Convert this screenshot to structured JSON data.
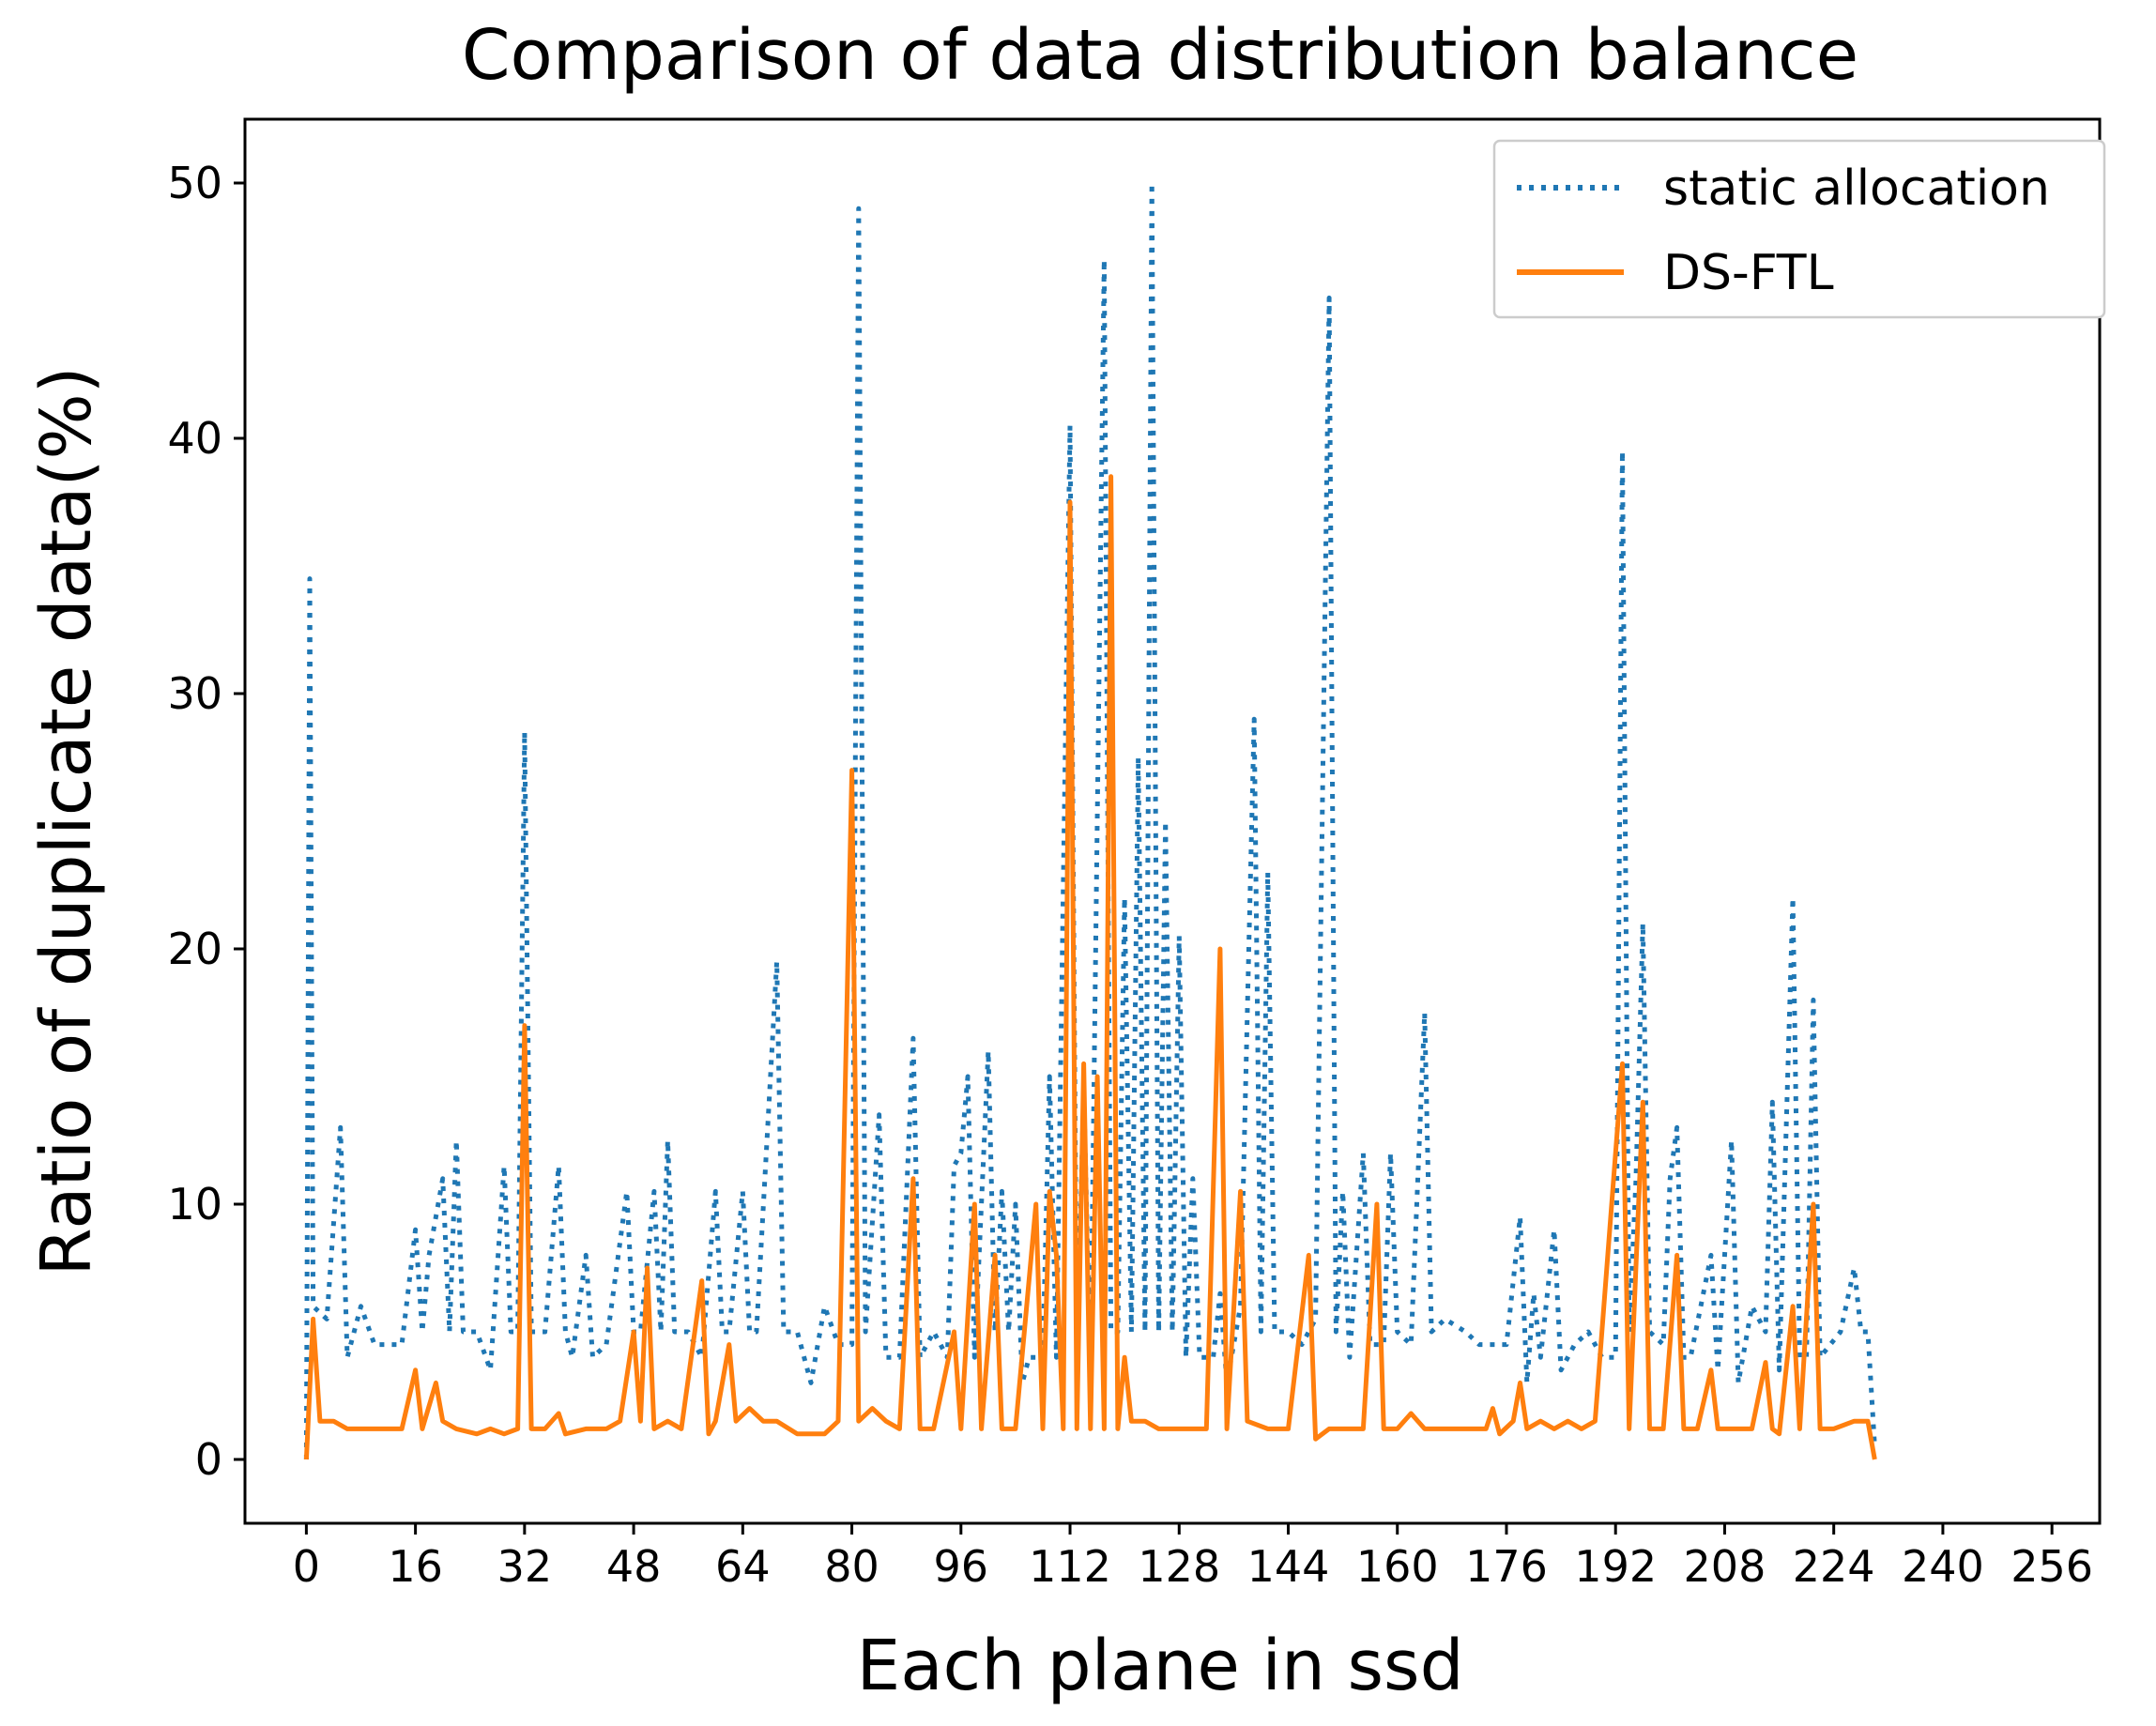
{
  "chart_data": {
    "type": "line",
    "title": "Comparison of data distribution balance",
    "xlabel": "Each plane in ssd",
    "ylabel": "Ratio of duplicate data(%)",
    "xlim": [
      -9,
      263
    ],
    "ylim": [
      -2.5,
      52.5
    ],
    "xticks": [
      0,
      16,
      32,
      48,
      64,
      80,
      96,
      112,
      128,
      144,
      160,
      176,
      192,
      208,
      224,
      240,
      256
    ],
    "yticks": [
      0,
      10,
      20,
      30,
      40,
      50
    ],
    "legend": {
      "position": "upper-right"
    },
    "series": [
      {
        "name": "static allocation",
        "color": "#1f77b4",
        "style": "dotted",
        "points": [
          [
            0,
            0
          ],
          [
            0.5,
            34.5
          ],
          [
            1,
            6
          ],
          [
            3,
            5.5
          ],
          [
            5,
            13
          ],
          [
            6,
            4
          ],
          [
            8,
            6
          ],
          [
            10,
            4.5
          ],
          [
            14,
            4.5
          ],
          [
            16,
            9
          ],
          [
            17,
            5
          ],
          [
            18,
            8
          ],
          [
            20,
            11
          ],
          [
            21,
            5
          ],
          [
            22,
            12.5
          ],
          [
            23,
            5
          ],
          [
            25,
            5
          ],
          [
            27,
            3.5
          ],
          [
            29,
            11.5
          ],
          [
            30,
            5
          ],
          [
            31,
            5
          ],
          [
            32,
            28.5
          ],
          [
            33,
            5
          ],
          [
            35,
            5
          ],
          [
            37,
            11.5
          ],
          [
            38,
            5
          ],
          [
            39,
            4
          ],
          [
            41,
            8
          ],
          [
            42,
            4
          ],
          [
            44,
            4.5
          ],
          [
            47,
            10.5
          ],
          [
            48,
            5
          ],
          [
            49,
            5
          ],
          [
            51,
            10.5
          ],
          [
            52,
            5
          ],
          [
            53,
            12.5
          ],
          [
            54,
            5
          ],
          [
            56,
            5
          ],
          [
            58,
            4
          ],
          [
            60,
            10.5
          ],
          [
            61,
            5
          ],
          [
            62,
            5
          ],
          [
            64,
            10.5
          ],
          [
            65,
            5
          ],
          [
            66,
            5
          ],
          [
            69,
            19.5
          ],
          [
            70,
            5
          ],
          [
            72,
            5
          ],
          [
            74,
            3
          ],
          [
            76,
            6
          ],
          [
            78,
            4.5
          ],
          [
            80,
            4.5
          ],
          [
            81,
            49
          ],
          [
            82,
            5
          ],
          [
            84,
            13.5
          ],
          [
            85,
            4
          ],
          [
            87,
            4
          ],
          [
            89,
            16.5
          ],
          [
            90,
            4
          ],
          [
            92,
            5
          ],
          [
            94,
            4
          ],
          [
            95,
            11.5
          ],
          [
            96,
            12
          ],
          [
            97,
            15
          ],
          [
            98,
            4
          ],
          [
            100,
            16
          ],
          [
            101,
            5
          ],
          [
            102,
            10.5
          ],
          [
            103,
            5
          ],
          [
            104,
            10
          ],
          [
            105,
            3
          ],
          [
            106,
            4
          ],
          [
            108,
            4
          ],
          [
            109,
            15
          ],
          [
            110,
            4
          ],
          [
            112,
            40.5
          ],
          [
            113,
            4
          ],
          [
            114,
            14.5
          ],
          [
            115,
            3.5
          ],
          [
            117,
            47
          ],
          [
            118,
            5
          ],
          [
            119,
            5
          ],
          [
            120,
            22
          ],
          [
            121,
            5
          ],
          [
            122,
            27.5
          ],
          [
            123,
            5
          ],
          [
            124,
            50
          ],
          [
            125,
            5
          ],
          [
            126,
            25
          ],
          [
            127,
            5
          ],
          [
            128,
            20.5
          ],
          [
            129,
            4
          ],
          [
            130,
            11
          ],
          [
            131,
            4
          ],
          [
            132,
            4
          ],
          [
            133,
            4
          ],
          [
            134,
            6.5
          ],
          [
            135,
            3
          ],
          [
            137,
            6
          ],
          [
            139,
            29
          ],
          [
            140,
            5
          ],
          [
            141,
            23
          ],
          [
            142,
            5
          ],
          [
            144,
            5
          ],
          [
            146,
            4.5
          ],
          [
            148,
            5.5
          ],
          [
            150,
            45.5
          ],
          [
            151,
            5
          ],
          [
            152,
            10.5
          ],
          [
            153,
            4
          ],
          [
            155,
            12
          ],
          [
            156,
            4.5
          ],
          [
            158,
            4.5
          ],
          [
            159,
            12
          ],
          [
            160,
            5
          ],
          [
            162,
            4.5
          ],
          [
            164,
            17.5
          ],
          [
            165,
            5
          ],
          [
            167,
            5.5
          ],
          [
            170,
            5
          ],
          [
            172,
            4.5
          ],
          [
            176,
            4.5
          ],
          [
            178,
            9.5
          ],
          [
            179,
            3
          ],
          [
            180,
            6.5
          ],
          [
            181,
            4
          ],
          [
            183,
            9
          ],
          [
            184,
            3.5
          ],
          [
            186,
            4.5
          ],
          [
            188,
            5
          ],
          [
            190,
            4
          ],
          [
            192,
            4
          ],
          [
            193,
            39.5
          ],
          [
            194,
            5
          ],
          [
            195,
            11
          ],
          [
            196,
            21
          ],
          [
            197,
            5
          ],
          [
            199,
            4.5
          ],
          [
            200,
            11
          ],
          [
            201,
            13
          ],
          [
            202,
            4
          ],
          [
            203,
            4
          ],
          [
            206,
            8
          ],
          [
            207,
            3.5
          ],
          [
            209,
            12.5
          ],
          [
            210,
            3
          ],
          [
            212,
            6
          ],
          [
            214,
            5
          ],
          [
            215,
            14
          ],
          [
            216,
            3.5
          ],
          [
            218,
            22
          ],
          [
            219,
            4
          ],
          [
            220,
            4
          ],
          [
            221,
            18
          ],
          [
            222,
            4
          ],
          [
            225,
            5
          ],
          [
            227,
            7.5
          ],
          [
            228,
            5
          ],
          [
            229,
            5
          ],
          [
            230,
            0.5
          ]
        ]
      },
      {
        "name": "DS-FTL",
        "color": "#ff7f0e",
        "style": "solid",
        "points": [
          [
            0,
            0
          ],
          [
            1,
            5.5
          ],
          [
            2,
            1.5
          ],
          [
            4,
            1.5
          ],
          [
            6,
            1.2
          ],
          [
            10,
            1.2
          ],
          [
            14,
            1.2
          ],
          [
            16,
            3.5
          ],
          [
            17,
            1.2
          ],
          [
            19,
            3
          ],
          [
            20,
            1.5
          ],
          [
            22,
            1.2
          ],
          [
            25,
            1
          ],
          [
            27,
            1.2
          ],
          [
            29,
            1
          ],
          [
            31,
            1.2
          ],
          [
            32,
            17
          ],
          [
            33,
            1.2
          ],
          [
            35,
            1.2
          ],
          [
            37,
            1.8
          ],
          [
            38,
            1
          ],
          [
            41,
            1.2
          ],
          [
            44,
            1.2
          ],
          [
            46,
            1.5
          ],
          [
            48,
            5
          ],
          [
            49,
            1.5
          ],
          [
            50,
            7.5
          ],
          [
            51,
            1.2
          ],
          [
            53,
            1.5
          ],
          [
            55,
            1.2
          ],
          [
            58,
            7
          ],
          [
            59,
            1
          ],
          [
            60,
            1.5
          ],
          [
            62,
            4.5
          ],
          [
            63,
            1.5
          ],
          [
            65,
            2
          ],
          [
            67,
            1.5
          ],
          [
            69,
            1.5
          ],
          [
            72,
            1
          ],
          [
            74,
            1
          ],
          [
            76,
            1
          ],
          [
            78,
            1.5
          ],
          [
            80,
            27
          ],
          [
            81,
            1.5
          ],
          [
            83,
            2
          ],
          [
            85,
            1.5
          ],
          [
            87,
            1.2
          ],
          [
            89,
            11
          ],
          [
            90,
            1.2
          ],
          [
            92,
            1.2
          ],
          [
            95,
            5
          ],
          [
            96,
            1.2
          ],
          [
            98,
            10
          ],
          [
            99,
            1.2
          ],
          [
            101,
            8
          ],
          [
            102,
            1.2
          ],
          [
            104,
            1.2
          ],
          [
            107,
            10
          ],
          [
            108,
            1.2
          ],
          [
            109,
            10.5
          ],
          [
            110,
            8
          ],
          [
            111,
            1.2
          ],
          [
            112,
            37.5
          ],
          [
            113,
            1.2
          ],
          [
            114,
            15.5
          ],
          [
            115,
            1.2
          ],
          [
            116,
            15
          ],
          [
            117,
            1.2
          ],
          [
            118,
            38.5
          ],
          [
            119,
            1.2
          ],
          [
            120,
            4
          ],
          [
            121,
            1.5
          ],
          [
            123,
            1.5
          ],
          [
            125,
            1.2
          ],
          [
            127,
            1.2
          ],
          [
            130,
            1.2
          ],
          [
            132,
            1.2
          ],
          [
            134,
            20
          ],
          [
            135,
            1.2
          ],
          [
            137,
            10.5
          ],
          [
            138,
            1.5
          ],
          [
            141,
            1.2
          ],
          [
            144,
            1.2
          ],
          [
            147,
            8
          ],
          [
            148,
            0.8
          ],
          [
            150,
            1.2
          ],
          [
            153,
            1.2
          ],
          [
            155,
            1.2
          ],
          [
            157,
            10
          ],
          [
            158,
            1.2
          ],
          [
            160,
            1.2
          ],
          [
            162,
            1.8
          ],
          [
            164,
            1.2
          ],
          [
            168,
            1.2
          ],
          [
            171,
            1.2
          ],
          [
            173,
            1.2
          ],
          [
            174,
            2
          ],
          [
            175,
            1
          ],
          [
            177,
            1.5
          ],
          [
            178,
            3
          ],
          [
            179,
            1.2
          ],
          [
            181,
            1.5
          ],
          [
            183,
            1.2
          ],
          [
            185,
            1.5
          ],
          [
            187,
            1.2
          ],
          [
            189,
            1.5
          ],
          [
            193,
            15.5
          ],
          [
            194,
            1.2
          ],
          [
            196,
            14
          ],
          [
            197,
            1.2
          ],
          [
            199,
            1.2
          ],
          [
            201,
            8
          ],
          [
            202,
            1.2
          ],
          [
            204,
            1.2
          ],
          [
            206,
            3.5
          ],
          [
            207,
            1.2
          ],
          [
            209,
            1.2
          ],
          [
            212,
            1.2
          ],
          [
            214,
            3.8
          ],
          [
            215,
            1.2
          ],
          [
            216,
            1
          ],
          [
            218,
            6
          ],
          [
            219,
            1.2
          ],
          [
            221,
            10
          ],
          [
            222,
            1.2
          ],
          [
            224,
            1.2
          ],
          [
            227,
            1.5
          ],
          [
            229,
            1.5
          ],
          [
            230,
            0
          ]
        ]
      }
    ]
  }
}
